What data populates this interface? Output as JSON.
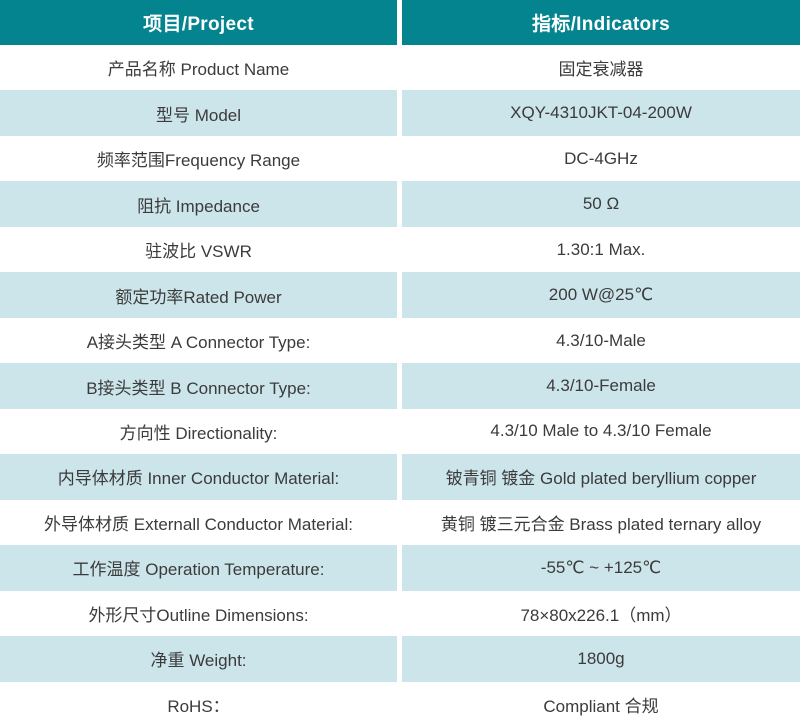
{
  "table": {
    "header": {
      "project": "项目/Project",
      "indicators": "指标/Indicators"
    },
    "rows": [
      {
        "project": "产品名称 Product Name",
        "indicator": "固定衰减器"
      },
      {
        "project": "型号 Model",
        "indicator": "XQY-4310JKT-04-200W"
      },
      {
        "project": "频率范围Frequency Range",
        "indicator": "DC-4GHz"
      },
      {
        "project": "阻抗 Impedance",
        "indicator": "50 Ω"
      },
      {
        "project": "驻波比 VSWR",
        "indicator": "1.30:1 Max."
      },
      {
        "project": "额定功率Rated Power",
        "indicator": "200 W@25℃"
      },
      {
        "project": "A接头类型 A Connector Type:",
        "indicator": "4.3/10-Male"
      },
      {
        "project": "B接头类型 B Connector Type:",
        "indicator": "4.3/10-Female"
      },
      {
        "project": "方向性 Directionality:",
        "indicator": "4.3/10 Male to 4.3/10 Female"
      },
      {
        "project": "内导体材质 Inner Conductor Material:",
        "indicator": "铍青铜 镀金 Gold plated beryllium copper"
      },
      {
        "project": "外导体材质 Externall Conductor Material:",
        "indicator": "黄铜 镀三元合金 Brass plated ternary alloy"
      },
      {
        "project": "工作温度 Operation Temperature:",
        "indicator": "-55℃ ~ +125℃"
      },
      {
        "project": "外形尺寸Outline Dimensions:",
        "indicator": "78×80x226.1（mm）"
      },
      {
        "project": "净重 Weight:",
        "indicator": "1800g"
      },
      {
        "project": "RoHS：",
        "indicator": "Compliant 合规"
      }
    ]
  },
  "theme": {
    "header_bg": "#03848F",
    "header_text": "#FFFFFF",
    "row_bg": "#FFFFFF",
    "row_alt_bg": "#CCE5EA",
    "body_text": "#3B3B3B",
    "divider": "#FFFFFF"
  }
}
